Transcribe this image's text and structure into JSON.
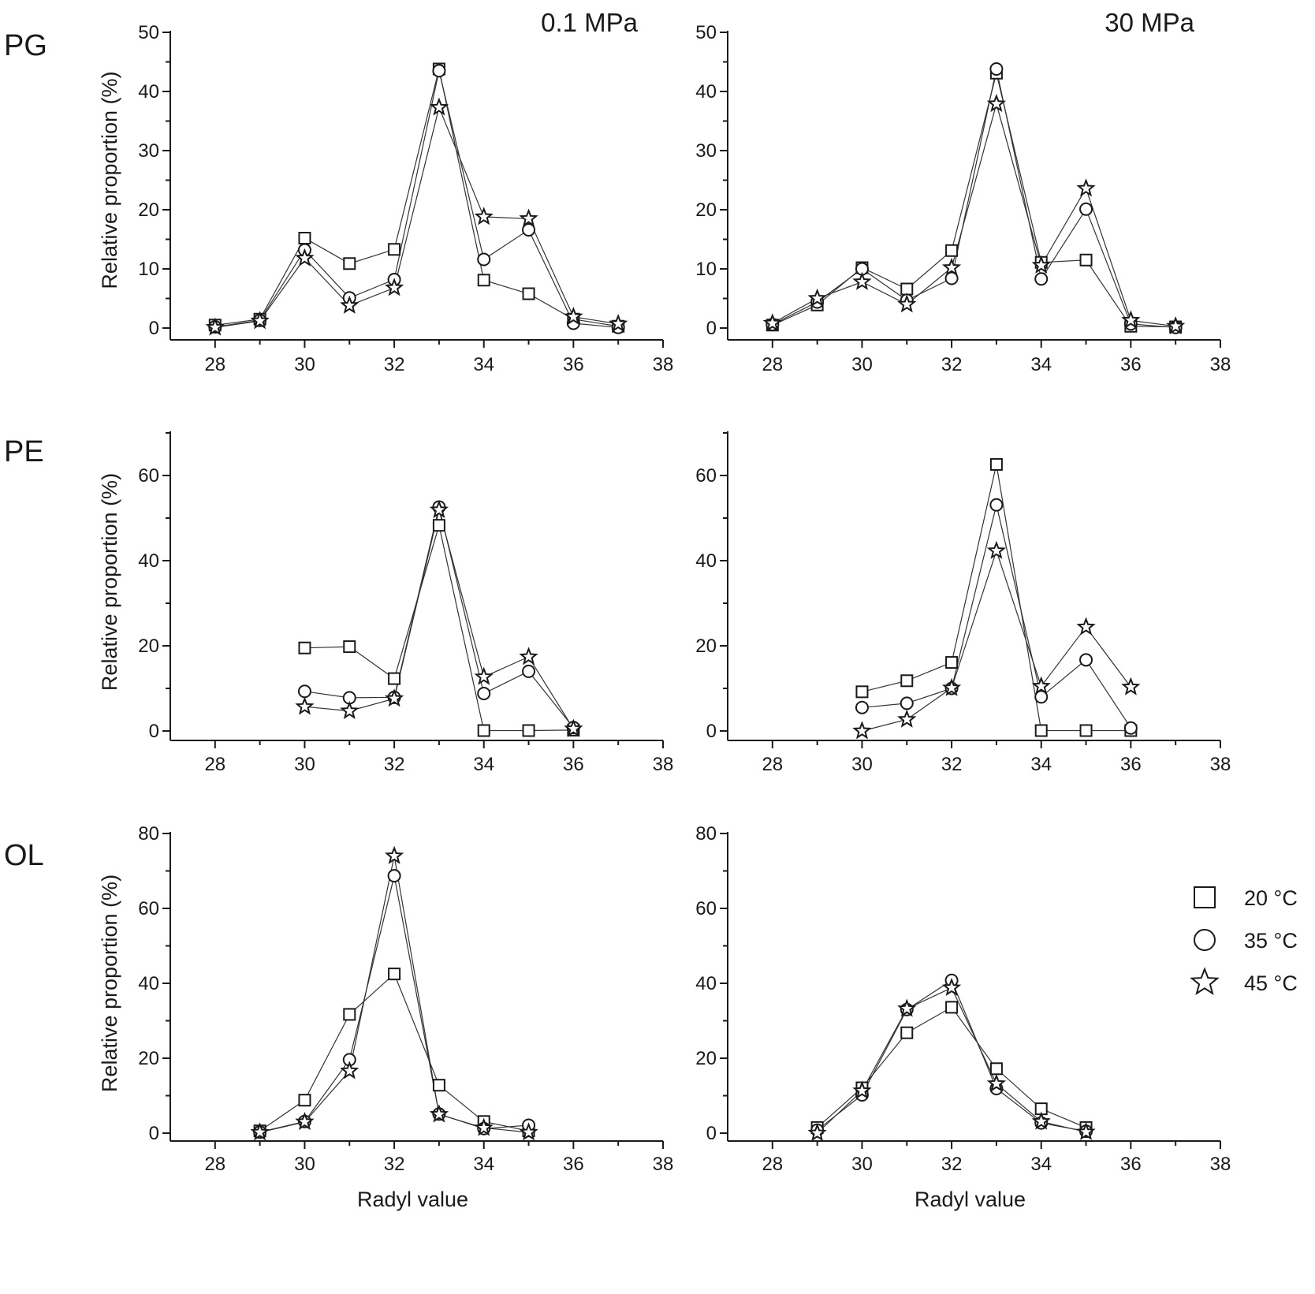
{
  "figure": {
    "column_titles": [
      "0.1 MPa",
      "30 MPa"
    ],
    "row_labels": [
      "PG",
      "PE",
      "OL"
    ],
    "legend": [
      {
        "label": "20 °C",
        "marker": "square"
      },
      {
        "label": "35 °C",
        "marker": "circle"
      },
      {
        "label": "45 °C",
        "marker": "star"
      }
    ]
  },
  "chart_data": [
    {
      "id": "pg-01",
      "type": "line",
      "title": "0.1 MPa",
      "row": "PG",
      "xlabel": "",
      "ylabel": "Relative proportion (%)",
      "xlim": [
        27,
        38
      ],
      "ylim": [
        0,
        50
      ],
      "xticks": [
        28,
        30,
        32,
        34,
        36,
        38
      ],
      "yticks": [
        0,
        10,
        20,
        30,
        40,
        50
      ],
      "x": [
        28,
        29,
        30,
        31,
        32,
        33,
        34,
        35,
        36,
        37
      ],
      "series": [
        {
          "name": "20 °C",
          "marker": "square",
          "values": [
            0.5,
            1.5,
            15.2,
            10.9,
            13.3,
            43.8,
            8.1,
            5.8,
            1.5,
            0.3
          ]
        },
        {
          "name": "35 °C",
          "marker": "circle",
          "values": [
            0.2,
            1.3,
            13.2,
            5.1,
            8.2,
            43.5,
            11.6,
            16.6,
            0.8,
            0.1
          ]
        },
        {
          "name": "45 °C",
          "marker": "star",
          "values": [
            0.1,
            1.2,
            11.8,
            3.8,
            6.8,
            37.3,
            18.8,
            18.5,
            1.9,
            0.7
          ]
        }
      ]
    },
    {
      "id": "pg-30",
      "type": "line",
      "title": "30 MPa",
      "row": "PG",
      "xlabel": "",
      "ylabel": "",
      "xlim": [
        27,
        38
      ],
      "ylim": [
        0,
        50
      ],
      "xticks": [
        28,
        30,
        32,
        34,
        36,
        38
      ],
      "yticks": [
        0,
        10,
        20,
        30,
        40,
        50
      ],
      "x": [
        28,
        29,
        30,
        31,
        32,
        33,
        34,
        35,
        36,
        37
      ],
      "series": [
        {
          "name": "20 °C",
          "marker": "square",
          "values": [
            0.5,
            3.9,
            10.2,
            6.6,
            13.1,
            43.1,
            11.1,
            11.5,
            0.3,
            0.2
          ]
        },
        {
          "name": "35 °C",
          "marker": "circle",
          "values": [
            0.6,
            4.4,
            10.0,
            4.7,
            8.4,
            43.8,
            8.3,
            20.1,
            0.7,
            0.1
          ]
        },
        {
          "name": "45 °C",
          "marker": "star",
          "values": [
            0.8,
            5.0,
            7.8,
            4.0,
            10.2,
            37.9,
            10.6,
            23.6,
            1.3,
            0.3
          ]
        }
      ]
    },
    {
      "id": "pe-01",
      "type": "line",
      "title": "",
      "row": "PE",
      "xlabel": "",
      "ylabel": "Relative proportion (%)",
      "xlim": [
        27,
        38
      ],
      "ylim": [
        0,
        70
      ],
      "xticks": [
        28,
        30,
        32,
        34,
        36,
        38
      ],
      "yticks": [
        0,
        20,
        40,
        60
      ],
      "x": [
        30,
        31,
        32,
        33,
        34,
        35,
        36
      ],
      "series": [
        {
          "name": "20 °C",
          "marker": "square",
          "values": [
            19.5,
            19.8,
            12.3,
            48.3,
            0.1,
            0.1,
            0.2
          ]
        },
        {
          "name": "35 °C",
          "marker": "circle",
          "values": [
            9.3,
            7.8,
            7.9,
            52.6,
            8.8,
            14.0,
            0.8
          ]
        },
        {
          "name": "45 °C",
          "marker": "star",
          "values": [
            5.7,
            4.7,
            7.6,
            51.9,
            12.7,
            17.4,
            0.5
          ]
        }
      ]
    },
    {
      "id": "pe-30",
      "type": "line",
      "title": "",
      "row": "PE",
      "xlabel": "",
      "ylabel": "",
      "xlim": [
        27,
        38
      ],
      "ylim": [
        0,
        70
      ],
      "xticks": [
        28,
        30,
        32,
        34,
        36,
        38
      ],
      "yticks": [
        0,
        20,
        40,
        60
      ],
      "x": [
        30,
        31,
        32,
        33,
        34,
        35,
        36
      ],
      "series": [
        {
          "name": "20 °C",
          "marker": "square",
          "values": [
            9.2,
            11.8,
            16.1,
            62.6,
            0.1,
            0.1,
            0.1
          ]
        },
        {
          "name": "35 °C",
          "marker": "circle",
          "values": [
            5.5,
            6.5,
            10.0,
            53.1,
            8.0,
            16.7,
            0.7
          ]
        },
        {
          "name": "45 °C",
          "marker": "star",
          "values": [
            0.0,
            2.7,
            10.1,
            42.3,
            10.5,
            24.4,
            10.3
          ]
        }
      ]
    },
    {
      "id": "ol-01",
      "type": "line",
      "title": "",
      "row": "OL",
      "xlabel": "Radyl value",
      "ylabel": "Relative proportion (%)",
      "xlim": [
        27,
        38
      ],
      "ylim": [
        0,
        80
      ],
      "xticks": [
        28,
        30,
        32,
        34,
        36,
        38
      ],
      "yticks": [
        0,
        20,
        40,
        60,
        80
      ],
      "x": [
        29,
        30,
        31,
        32,
        33,
        34,
        35
      ],
      "series": [
        {
          "name": "20 °C",
          "marker": "square",
          "values": [
            0.6,
            8.8,
            31.7,
            42.5,
            12.8,
            3.1,
            0.6
          ]
        },
        {
          "name": "35 °C",
          "marker": "circle",
          "values": [
            0.3,
            3.1,
            19.6,
            68.7,
            5.1,
            1.2,
            2.1
          ]
        },
        {
          "name": "45 °C",
          "marker": "star",
          "values": [
            0.2,
            3.0,
            16.6,
            74.0,
            5.0,
            1.4,
            0.2
          ]
        }
      ]
    },
    {
      "id": "ol-30",
      "type": "line",
      "title": "",
      "row": "OL",
      "xlabel": "Radyl value",
      "ylabel": "",
      "xlim": [
        27,
        38
      ],
      "ylim": [
        0,
        80
      ],
      "xticks": [
        28,
        30,
        32,
        34,
        36,
        38
      ],
      "yticks": [
        0,
        20,
        40,
        60,
        80
      ],
      "x": [
        29,
        30,
        31,
        32,
        33,
        34,
        35
      ],
      "series": [
        {
          "name": "20 °C",
          "marker": "square",
          "values": [
            1.5,
            12.1,
            26.8,
            33.6,
            17.2,
            6.5,
            1.5
          ]
        },
        {
          "name": "35 °C",
          "marker": "circle",
          "values": [
            0.8,
            10.2,
            33.0,
            40.8,
            11.9,
            2.7,
            0.5
          ]
        },
        {
          "name": "45 °C",
          "marker": "star",
          "values": [
            0.0,
            11.3,
            33.2,
            38.8,
            13.2,
            3.1,
            0.3
          ]
        }
      ]
    }
  ]
}
